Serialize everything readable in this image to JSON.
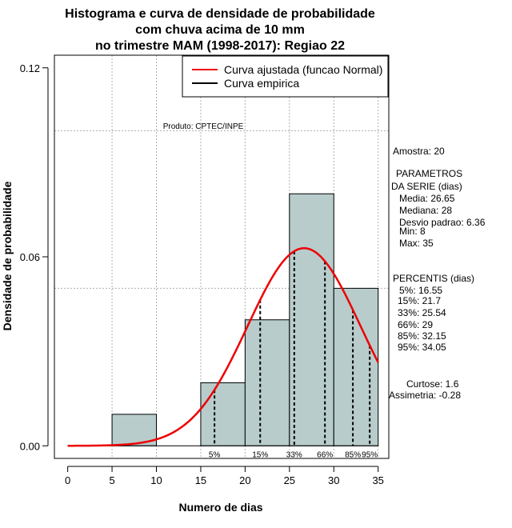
{
  "chart_data": {
    "type": "bar",
    "title_lines": [
      "Histograma e curva de densidade de probabilidade",
      "com chuva acima de 10 mm",
      "no trimestre MAM (1998-2017): Regiao 22"
    ],
    "xlabel": "Numero de dias",
    "ylabel": "Densidade de probabilidade",
    "xlim": [
      -1.5,
      36.2
    ],
    "ylim": [
      -0.004,
      0.124
    ],
    "x_ticks": [
      0,
      5,
      10,
      15,
      20,
      25,
      30,
      35
    ],
    "y_ticks": [
      0.0,
      0.06,
      0.12
    ],
    "y_tick_labels": [
      "0.00",
      "0.06",
      "0.12"
    ],
    "bins": [
      {
        "start": 5,
        "end": 10,
        "density": 0.01
      },
      {
        "start": 10,
        "end": 15,
        "density": 0.0
      },
      {
        "start": 15,
        "end": 20,
        "density": 0.02
      },
      {
        "start": 20,
        "end": 25,
        "density": 0.04
      },
      {
        "start": 25,
        "end": 30,
        "density": 0.08
      },
      {
        "start": 30,
        "end": 35,
        "density": 0.05
      }
    ],
    "bar_color": "#b8cccc",
    "curve": {
      "name": "Curva ajustada (funcao Normal)",
      "distribution": "normal",
      "mean": 26.65,
      "sd": 6.36,
      "x_range": [
        0,
        35
      ],
      "color": "#ee0000"
    },
    "empirical": {
      "name": "Curva empirica",
      "color": "#000000"
    },
    "percentiles": [
      {
        "label": "5%",
        "value": 16.55
      },
      {
        "label": "15%",
        "value": 21.7
      },
      {
        "label": "33%",
        "value": 25.54
      },
      {
        "label": "66%",
        "value": 29
      },
      {
        "label": "85%",
        "value": 32.15
      },
      {
        "label": "95%",
        "value": 34.05
      }
    ],
    "grid_x": [
      5,
      10,
      15,
      20,
      25,
      30,
      35
    ],
    "grid_y": [
      0.05,
      0.1
    ],
    "credit": "Produto: CPTEC/INPE",
    "legend_position": "top-right"
  },
  "side_panel": {
    "sample": "Amostra: 20",
    "params_title_1": "PARAMETROS",
    "params_title_2": "DA SERIE (dias)",
    "media": "Media: 26.65",
    "mediana": "Mediana: 28",
    "desvio": "Desvio padrao: 6.36",
    "min": "Min: 8",
    "max": "Max: 35",
    "percentis_title": "PERCENTIS (dias)",
    "p5": "5%: 16.55",
    "p15": "15%: 21.7",
    "p33": "33%: 25.54",
    "p66": "66%: 29",
    "p85": "85%: 32.15",
    "p95": "95%: 34.05",
    "curtose": "Curtose: 1.6",
    "assimetria": "Assimetria: -0.28"
  }
}
